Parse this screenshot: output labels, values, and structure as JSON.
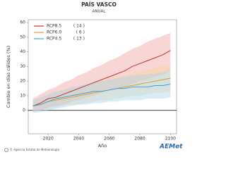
{
  "chart_data": {
    "type": "line_band",
    "title": "PAÍS VASCO",
    "subtitle": "ANUAL",
    "y_label": "Cambio en días cálidos (%)",
    "x_label": "Año",
    "x": [
      2010,
      2015,
      2020,
      2025,
      2030,
      2035,
      2040,
      2045,
      2050,
      2055,
      2060,
      2065,
      2070,
      2075,
      2080,
      2085,
      2090,
      2095,
      2100
    ],
    "series": [
      {
        "name": "RCP8.5",
        "legend_note": "( 14 )",
        "color": "#c8322d",
        "band_color": "#f2a5a5",
        "values": [
          3,
          5,
          8,
          9,
          11,
          13,
          15,
          17,
          19,
          21,
          23,
          25,
          27,
          30,
          32,
          34,
          36,
          38,
          41
        ],
        "lower": [
          -1,
          0,
          2,
          3,
          4,
          6,
          7,
          9,
          10,
          12,
          13,
          15,
          16,
          18,
          20,
          21,
          23,
          24,
          27
        ],
        "upper": [
          8,
          11,
          14,
          16,
          19,
          21,
          24,
          26,
          29,
          31,
          34,
          36,
          39,
          42,
          44,
          47,
          49,
          51,
          53
        ]
      },
      {
        "name": "RCP6.0",
        "legend_note": "( 6 )",
        "color": "#e89a2c",
        "band_color": "#f7d39c",
        "values": [
          3,
          4,
          6,
          7,
          8,
          9,
          10,
          11,
          12,
          13,
          14,
          15,
          16,
          17,
          18,
          19,
          20,
          21,
          22
        ],
        "lower": [
          -1,
          0,
          1,
          2,
          3,
          4,
          4,
          5,
          6,
          7,
          7,
          8,
          9,
          10,
          10,
          11,
          12,
          12,
          13
        ],
        "upper": [
          7,
          9,
          11,
          12,
          14,
          15,
          16,
          18,
          19,
          20,
          22,
          23,
          24,
          25,
          27,
          28,
          29,
          30,
          31
        ]
      },
      {
        "name": "RCP4.5",
        "legend_note": "( 13 )",
        "color": "#3fa3d8",
        "band_color": "#a9d6f0",
        "values": [
          3,
          4,
          6,
          8,
          9,
          10,
          11,
          12,
          13,
          13,
          14,
          15,
          15,
          16,
          16,
          16,
          17,
          17,
          18
        ],
        "lower": [
          -2,
          -1,
          0,
          1,
          2,
          3,
          4,
          4,
          5,
          5,
          6,
          6,
          7,
          7,
          7,
          8,
          8,
          8,
          9
        ],
        "upper": [
          7,
          9,
          11,
          13,
          14,
          16,
          17,
          18,
          20,
          20,
          21,
          22,
          23,
          24,
          24,
          25,
          25,
          26,
          27
        ]
      }
    ],
    "xlim": [
      2007,
      2104
    ],
    "xticks": [
      2020,
      2040,
      2060,
      2080,
      2100
    ],
    "ylim": [
      -16,
      62
    ],
    "yticks": [
      0,
      10,
      20,
      30,
      40,
      50,
      60
    ],
    "legend": "upper left",
    "zero_line": true,
    "footer": "© Agencia Estatal de Meteorología",
    "logo": "AEMet"
  }
}
